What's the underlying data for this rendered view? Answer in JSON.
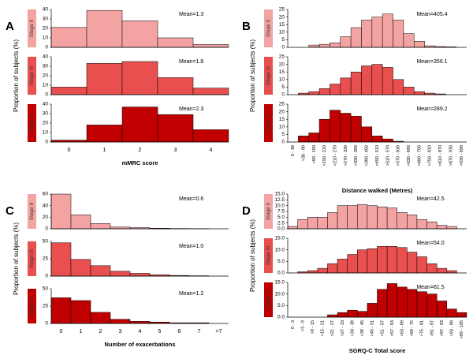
{
  "chart_data": [
    {
      "type": "bar",
      "panel_label": "A",
      "y_label": "Proportion of subjects (%)",
      "x_label": "mMRC score",
      "categories": [
        "0",
        "1",
        "2",
        "3",
        "4"
      ],
      "subplots": [
        {
          "name": "Stage II",
          "annotation": "Mean=1.3",
          "color": "#f4a3a3",
          "values": [
            21,
            39,
            28,
            10,
            3
          ],
          "ylim": [
            0,
            40
          ],
          "yticks": [
            0,
            10,
            20,
            30,
            40
          ]
        },
        {
          "name": "Stage III",
          "annotation": "Mean=1.8",
          "color": "#e94f4f",
          "values": [
            8,
            33,
            35,
            18,
            7
          ],
          "ylim": [
            0,
            40
          ],
          "yticks": [
            0,
            10,
            20,
            30,
            40
          ]
        },
        {
          "name": "Stage IV",
          "annotation": "Mean=2.3",
          "color": "#c00000",
          "values": [
            2,
            18,
            37,
            29,
            13
          ],
          "ylim": [
            0,
            40
          ],
          "yticks": [
            0,
            10,
            20,
            30,
            40
          ]
        }
      ]
    },
    {
      "type": "bar",
      "panel_label": "B",
      "y_label": "Proportion of subjects (%)",
      "x_label": "Distance walked (Metres)",
      "categories": [
        "0 - 30",
        ">30 - 90",
        ">90 - 150",
        ">150 - 210",
        ">210 - 270",
        ">270 - 330",
        ">330 - 390",
        ">390 - 450",
        ">450 - 510",
        ">510 - 570",
        ">570 - 630",
        ">630 - 690",
        ">690 - 750",
        ">750 - 810",
        ">810 - 870",
        ">870 - 930",
        ">930 - 990"
      ],
      "subplots": [
        {
          "name": "Stage II",
          "annotation": "Mean=405.4",
          "color": "#f4a3a3",
          "values": [
            0,
            0,
            1.5,
            2,
            3,
            7,
            13,
            18,
            20,
            22,
            18,
            9,
            4,
            1,
            0.5,
            0.3,
            0
          ],
          "ylim": [
            0,
            25
          ],
          "yticks": [
            0,
            5,
            10,
            15,
            20,
            25
          ]
        },
        {
          "name": "Stage III",
          "annotation": "Mean=356.1",
          "color": "#e94f4f",
          "values": [
            0,
            1,
            2,
            4,
            7,
            11,
            15,
            19,
            20,
            18,
            10,
            5,
            2,
            1,
            0.5,
            0,
            0
          ],
          "ylim": [
            0,
            25
          ],
          "yticks": [
            0,
            5,
            10,
            15,
            20,
            25
          ]
        },
        {
          "name": "Stage IV",
          "annotation": "Mean=289.2",
          "color": "#c00000",
          "values": [
            0,
            4,
            6,
            15,
            21,
            19,
            17,
            10,
            4,
            2,
            0.5,
            0,
            0,
            0,
            0,
            0,
            0
          ],
          "ylim": [
            0,
            25
          ],
          "yticks": [
            0,
            5,
            10,
            15,
            20,
            25
          ]
        }
      ]
    },
    {
      "type": "bar",
      "panel_label": "C",
      "y_label": "Proportion of subjects (%)",
      "x_label": "Number of exacerbations",
      "categories": [
        "0",
        "1",
        "2",
        "3",
        "4",
        "5",
        "6",
        "7",
        ">7"
      ],
      "subplots": [
        {
          "name": "Stage II",
          "annotation": "Mean=0.6",
          "color": "#f4a3a3",
          "values": [
            60,
            24,
            9,
            3,
            2,
            1,
            0.5,
            0.3,
            0
          ],
          "ylim": [
            0,
            60
          ],
          "yticks": [
            0,
            20,
            40,
            60
          ]
        },
        {
          "name": "Stage III",
          "annotation": "Mean=1.0",
          "color": "#e94f4f",
          "values": [
            48,
            24,
            15,
            7,
            4,
            2,
            1,
            0.5,
            0
          ],
          "ylim": [
            0,
            50
          ],
          "yticks": [
            0,
            25,
            50
          ]
        },
        {
          "name": "Stage IV",
          "annotation": "Mean=1.2",
          "color": "#c00000",
          "values": [
            37,
            33,
            16,
            6,
            3,
            2,
            1,
            1,
            0
          ],
          "ylim": [
            0,
            50
          ],
          "yticks": [
            0,
            25,
            50
          ]
        }
      ]
    },
    {
      "type": "bar",
      "panel_label": "D",
      "y_label": "Proportion of subjects (%)",
      "x_label": "SGRQ-C Total score",
      "categories": [
        "0 - 3",
        ">3 - 9",
        ">9 - 15",
        ">15 - 21",
        ">21 - 27",
        ">27 - 33",
        ">33 - 39",
        ">39 - 45",
        ">45 - 51",
        ">51 - 57",
        ">57 - 63",
        ">63 - 69",
        ">69 - 75",
        ">75 - 81",
        ">81 - 87",
        ">87 - 93",
        ">93 - 99",
        ">99 - 105"
      ],
      "subplots": [
        {
          "name": "Stage II",
          "annotation": "Mean=42.5",
          "color": "#f4a3a3",
          "values": [
            1,
            4,
            5,
            5,
            7,
            10,
            10,
            10.5,
            10,
            9.5,
            9,
            7,
            6,
            4,
            3,
            1.5,
            1,
            0
          ],
          "ylim": [
            0,
            15
          ],
          "yticks": [
            {
              "value": 0,
              "label": "0.0"
            },
            {
              "value": 2.5,
              "label": "2.5"
            },
            {
              "value": 5,
              "label": "5.0"
            },
            {
              "value": 7.5,
              "label": "7.5"
            },
            {
              "value": 10,
              "label": "10.0"
            },
            {
              "value": 12.5,
              "label": "12.5"
            },
            {
              "value": 15,
              "label": "15.0"
            }
          ]
        },
        {
          "name": "Stage III",
          "annotation": "Mean=54.0",
          "color": "#e94f4f",
          "values": [
            0,
            0.5,
            1,
            2,
            4,
            6,
            8,
            10,
            10.5,
            11.5,
            11.5,
            11,
            9,
            7,
            4,
            2,
            1,
            0
          ],
          "ylim": [
            0,
            15
          ],
          "yticks": [
            {
              "value": 0,
              "label": "0.0"
            },
            {
              "value": 5,
              "label": "5.0"
            },
            {
              "value": 10,
              "label": "10.0"
            },
            {
              "value": 15,
              "label": "15.0"
            }
          ]
        },
        {
          "name": "Stage IV",
          "annotation": "Mean=61.5",
          "color": "#c00000",
          "values": [
            0,
            0,
            0,
            0,
            1,
            2,
            3,
            2.5,
            6,
            12,
            14.5,
            13,
            12,
            11,
            10,
            7,
            3.5,
            2
          ],
          "ylim": [
            0,
            15
          ],
          "yticks": [
            {
              "value": 0,
              "label": "0.0"
            },
            {
              "value": 5,
              "label": "5.0"
            },
            {
              "value": 10,
              "label": "10.0"
            },
            {
              "value": 15,
              "label": "15.0"
            }
          ]
        }
      ]
    }
  ]
}
